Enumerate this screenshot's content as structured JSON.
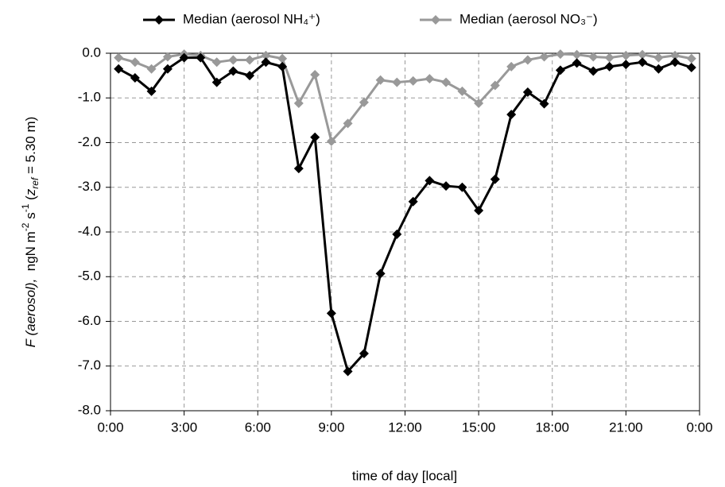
{
  "chart_data": {
    "type": "line",
    "xlabel": "time  of  day [local]",
    "ylabel": [
      "F (aerosol),",
      "  ngN m",
      "-2",
      " s",
      "-1",
      " (",
      "z",
      "ref",
      " = 5.30 m)"
    ],
    "x": [
      0.33,
      1.0,
      1.67,
      2.33,
      3.0,
      3.67,
      4.33,
      5.0,
      5.67,
      6.33,
      7.0,
      7.67,
      8.33,
      9.0,
      9.67,
      10.33,
      11.0,
      11.67,
      12.33,
      13.0,
      13.67,
      14.33,
      15.0,
      15.67,
      16.33,
      17.0,
      17.67,
      18.33,
      19.0,
      19.67,
      20.33,
      21.0,
      21.67,
      22.33,
      23.0,
      23.67
    ],
    "series": [
      {
        "name": "Median (aerosol NH₄⁺)",
        "color": "#000000",
        "values": [
          -0.35,
          -0.55,
          -0.85,
          -0.35,
          -0.1,
          -0.1,
          -0.65,
          -0.4,
          -0.5,
          -0.2,
          -0.3,
          -2.58,
          -1.88,
          -5.82,
          -7.12,
          -6.72,
          -4.93,
          -4.05,
          -3.32,
          -2.85,
          -2.97,
          -3.0,
          -3.52,
          -2.82,
          -1.37,
          -0.87,
          -1.13,
          -0.38,
          -0.22,
          -0.4,
          -0.3,
          -0.25,
          -0.2,
          -0.35,
          -0.2,
          -0.32
        ]
      },
      {
        "name": "Median (aerosol NO₃⁻)",
        "color": "#999999",
        "values": [
          -0.1,
          -0.2,
          -0.35,
          -0.08,
          -0.02,
          -0.05,
          -0.2,
          -0.15,
          -0.15,
          -0.05,
          -0.12,
          -1.12,
          -0.48,
          -1.97,
          -1.57,
          -1.1,
          -0.6,
          -0.65,
          -0.62,
          -0.57,
          -0.65,
          -0.85,
          -1.12,
          -0.72,
          -0.3,
          -0.15,
          -0.08,
          -0.02,
          -0.03,
          -0.08,
          -0.1,
          -0.05,
          -0.03,
          -0.1,
          -0.05,
          -0.12
        ]
      }
    ],
    "xlim": [
      0,
      24
    ],
    "xticks": [
      {
        "value": 0,
        "label": "0:00"
      },
      {
        "value": 3,
        "label": "3:00"
      },
      {
        "value": 6,
        "label": "6:00"
      },
      {
        "value": 9,
        "label": "9:00"
      },
      {
        "value": 12,
        "label": "12:00"
      },
      {
        "value": 15,
        "label": "15:00"
      },
      {
        "value": 18,
        "label": "18:00"
      },
      {
        "value": 21,
        "label": "21:00"
      },
      {
        "value": 24,
        "label": "0:00"
      }
    ],
    "ylim": [
      -8,
      0
    ],
    "yticks": [
      {
        "value": -8,
        "label": "-8.0"
      },
      {
        "value": -7,
        "label": "-7.0"
      },
      {
        "value": -6,
        "label": "-6.0"
      },
      {
        "value": -5,
        "label": "-5.0"
      },
      {
        "value": -4,
        "label": "-4.0"
      },
      {
        "value": -3,
        "label": "-3.0"
      },
      {
        "value": -2,
        "label": "-2.0"
      },
      {
        "value": -1,
        "label": "-1.0"
      },
      {
        "value": 0,
        "label": "0.0"
      }
    ],
    "grid": true,
    "legend": "top"
  }
}
